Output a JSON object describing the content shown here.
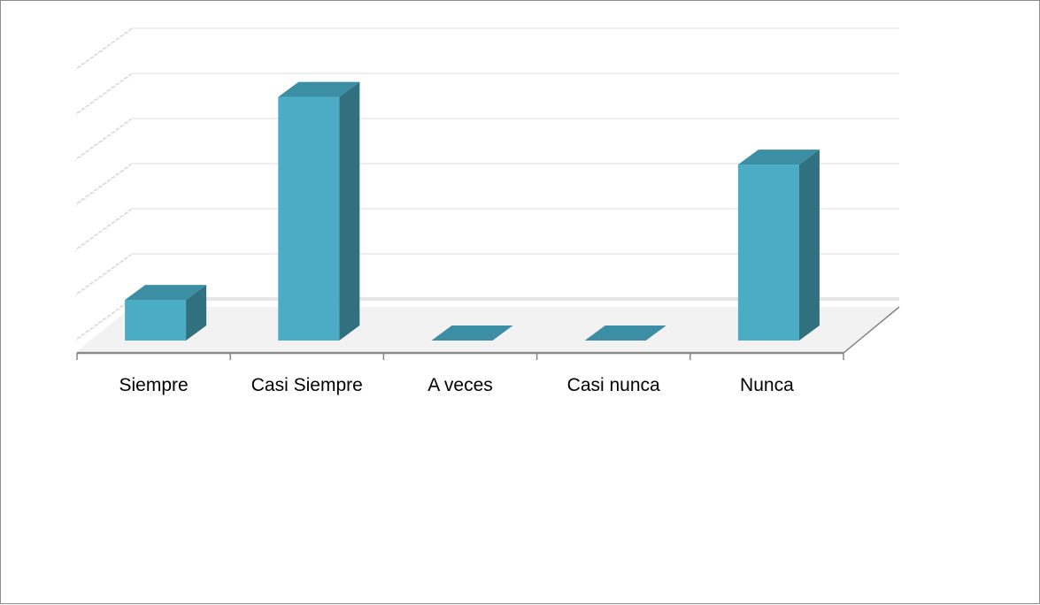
{
  "chart_data": {
    "type": "bar",
    "categories": [
      "Siempre",
      "Casi Siempre",
      "A veces",
      "Casi nunca",
      "Nunca"
    ],
    "values": [
      0.9,
      5.4,
      0,
      0,
      3.9
    ],
    "ylim": [
      0,
      6
    ],
    "grid": true,
    "legend": "none",
    "y_tick_labels_visible": false,
    "three_d": true,
    "colors": {
      "bar_front": "#4bacc6",
      "bar_side": "#31707f",
      "bar_top": "#3b8ea3",
      "grid": "#d9d9d9",
      "axis": "#868686"
    }
  }
}
